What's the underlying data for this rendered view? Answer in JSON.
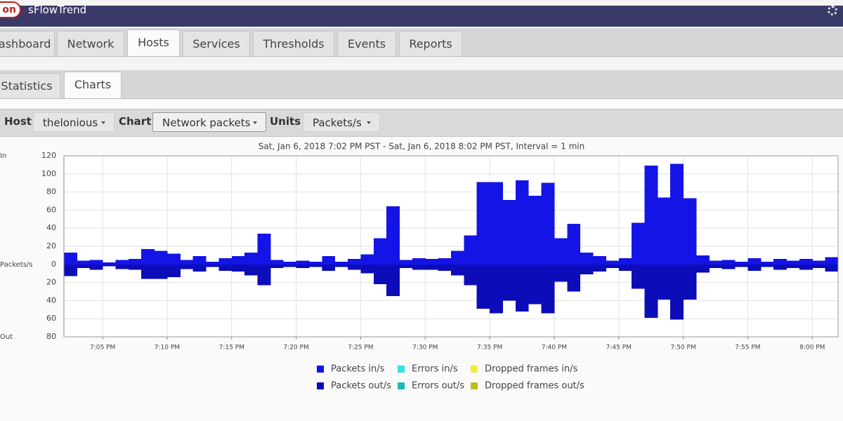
{
  "header": {
    "logo": "on",
    "app_name": "sFlowTrend"
  },
  "tabs": [
    "Dashboard",
    "Network",
    "Hosts",
    "Services",
    "Thresholds",
    "Events",
    "Reports"
  ],
  "active_tab": 2,
  "subtabs": [
    "Statistics",
    "Charts"
  ],
  "active_subtab": 1,
  "toolbar": {
    "host_label": "Host",
    "host": "thelonious",
    "chart_label": "Chart",
    "chart": "Network packets",
    "units_label": "Units",
    "units": "Packets/s"
  },
  "chart_data": {
    "type": "bar",
    "subtitle": "Sat, Jan 6, 2018 7:02 PM PST - Sat, Jan 6, 2018 8:02 PM PST, Interval = 1 min",
    "y_label_top": "In",
    "ylabel": "Packets/s",
    "y_label_bottom": "Out",
    "categories": [
      null,
      null,
      null,
      "7:05 PM",
      null,
      null,
      null,
      null,
      "7:10 PM",
      null,
      null,
      null,
      null,
      "7:15 PM",
      null,
      null,
      null,
      null,
      "7:20 PM",
      null,
      null,
      null,
      null,
      "7:25 PM",
      null,
      null,
      null,
      null,
      "7:30 PM",
      null,
      null,
      null,
      null,
      "7:35 PM",
      null,
      null,
      null,
      null,
      "7:40 PM",
      null,
      null,
      null,
      null,
      "7:45 PM",
      null,
      null,
      null,
      null,
      "7:50 PM",
      null,
      null,
      null,
      null,
      "7:55 PM",
      null,
      null,
      null,
      null,
      "8:00 PM",
      null
    ],
    "series": [
      {
        "name": "Packets in/s",
        "color": "#1414e6",
        "values": [
          13,
          4,
          5,
          2,
          5,
          6,
          17,
          15,
          12,
          5,
          9,
          3,
          7,
          9,
          13,
          34,
          5,
          3,
          4,
          3,
          9,
          3,
          6,
          11,
          29,
          64,
          5,
          7,
          6,
          7,
          15,
          32,
          91,
          91,
          71,
          93,
          76,
          90,
          29,
          45,
          13,
          9,
          4,
          7,
          46,
          109,
          74,
          111,
          73,
          10,
          4,
          5,
          3,
          7,
          3,
          6,
          4,
          6,
          4,
          8
        ]
      },
      {
        "name": "Errors in/s",
        "color": "#33e0e0",
        "values": [
          0,
          0,
          0,
          0,
          0,
          0,
          0,
          0,
          0,
          0,
          0,
          0,
          0,
          0,
          0,
          0,
          0,
          0,
          0,
          0,
          0,
          0,
          0,
          0,
          0,
          0,
          0,
          0,
          0,
          0,
          0,
          0,
          0,
          0,
          0,
          0,
          0,
          0,
          0,
          0,
          0,
          0,
          0,
          0,
          0,
          0,
          0,
          0,
          0,
          0,
          0,
          0,
          0,
          0,
          0,
          0,
          0,
          0,
          0,
          0
        ]
      },
      {
        "name": "Dropped frames in/s",
        "color": "#eeee3a",
        "values": [
          0,
          0,
          0,
          0,
          0,
          0,
          0,
          0,
          0,
          0,
          0,
          0,
          0,
          0,
          0,
          0,
          0,
          0,
          0,
          0,
          0,
          0,
          0,
          0,
          0,
          0,
          0,
          0,
          0,
          0,
          0,
          0,
          0,
          0,
          0,
          0,
          0,
          0,
          0,
          0,
          0,
          0,
          0,
          0,
          0,
          0,
          0,
          0,
          0,
          0,
          0,
          0,
          0,
          0,
          0,
          0,
          0,
          0,
          0,
          0
        ]
      },
      {
        "name": "Packets out/s",
        "color": "#0c0cb8",
        "values": [
          -13,
          -4,
          -6,
          -2,
          -5,
          -6,
          -16,
          -16,
          -14,
          -5,
          -8,
          -3,
          -7,
          -8,
          -12,
          -23,
          -4,
          -3,
          -4,
          -3,
          -7,
          -3,
          -6,
          -10,
          -22,
          -35,
          -4,
          -6,
          -6,
          -7,
          -12,
          -23,
          -49,
          -54,
          -40,
          -52,
          -44,
          -54,
          -19,
          -30,
          -11,
          -8,
          -4,
          -7,
          -27,
          -59,
          -39,
          -61,
          -39,
          -9,
          -4,
          -5,
          -3,
          -7,
          -3,
          -6,
          -4,
          -6,
          -4,
          -8
        ]
      },
      {
        "name": "Errors out/s",
        "color": "#22b8b8",
        "values": [
          0,
          0,
          0,
          0,
          0,
          0,
          0,
          0,
          0,
          0,
          0,
          0,
          0,
          0,
          0,
          0,
          0,
          0,
          0,
          0,
          0,
          0,
          0,
          0,
          0,
          0,
          0,
          0,
          0,
          0,
          0,
          0,
          0,
          0,
          0,
          0,
          0,
          0,
          0,
          0,
          0,
          0,
          0,
          0,
          0,
          0,
          0,
          0,
          0,
          0,
          0,
          0,
          0,
          0,
          0,
          0,
          0,
          0,
          0,
          0
        ]
      },
      {
        "name": "Dropped frames out/s",
        "color": "#bbbb22",
        "values": [
          0,
          0,
          0,
          0,
          0,
          0,
          0,
          0,
          0,
          0,
          0,
          0,
          0,
          0,
          0,
          0,
          0,
          0,
          0,
          0,
          0,
          0,
          0,
          0,
          0,
          0,
          0,
          0,
          0,
          0,
          0,
          0,
          0,
          0,
          0,
          0,
          0,
          0,
          0,
          0,
          0,
          0,
          0,
          0,
          0,
          0,
          0,
          0,
          0,
          0,
          0,
          0,
          0,
          0,
          0,
          0,
          0,
          0,
          0,
          0
        ]
      }
    ],
    "ylim": [
      -80,
      120
    ],
    "yticks": [
      {
        "value": -80,
        "label": "80"
      },
      {
        "value": -60,
        "label": "60"
      },
      {
        "value": -40,
        "label": "40"
      },
      {
        "value": -20,
        "label": "20"
      },
      0,
      20,
      40,
      60,
      80,
      100,
      120
    ],
    "grid": true
  }
}
